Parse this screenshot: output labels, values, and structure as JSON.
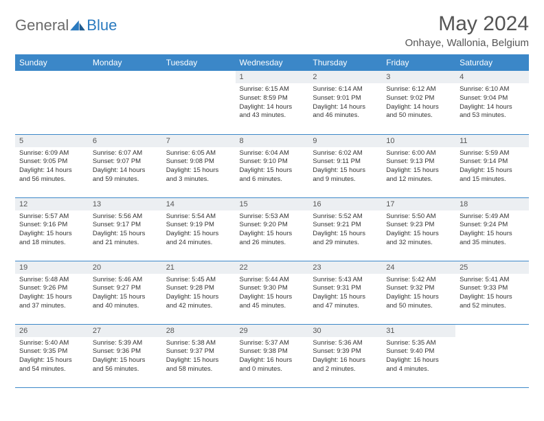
{
  "logo": {
    "word1": "General",
    "word2": "Blue"
  },
  "title": "May 2024",
  "location": "Onhaye, Wallonia, Belgium",
  "colors": {
    "header_bg": "#3b87c8",
    "header_text": "#ffffff",
    "daynum_bg": "#eceff2",
    "border": "#3b87c8",
    "logo_gray": "#6a6a6a",
    "logo_blue": "#2a7abf"
  },
  "weekdays": [
    "Sunday",
    "Monday",
    "Tuesday",
    "Wednesday",
    "Thursday",
    "Friday",
    "Saturday"
  ],
  "weeks": [
    [
      null,
      null,
      null,
      {
        "n": "1",
        "sr": "6:15 AM",
        "ss": "8:59 PM",
        "dl": "14 hours and 43 minutes."
      },
      {
        "n": "2",
        "sr": "6:14 AM",
        "ss": "9:01 PM",
        "dl": "14 hours and 46 minutes."
      },
      {
        "n": "3",
        "sr": "6:12 AM",
        "ss": "9:02 PM",
        "dl": "14 hours and 50 minutes."
      },
      {
        "n": "4",
        "sr": "6:10 AM",
        "ss": "9:04 PM",
        "dl": "14 hours and 53 minutes."
      }
    ],
    [
      {
        "n": "5",
        "sr": "6:09 AM",
        "ss": "9:05 PM",
        "dl": "14 hours and 56 minutes."
      },
      {
        "n": "6",
        "sr": "6:07 AM",
        "ss": "9:07 PM",
        "dl": "14 hours and 59 minutes."
      },
      {
        "n": "7",
        "sr": "6:05 AM",
        "ss": "9:08 PM",
        "dl": "15 hours and 3 minutes."
      },
      {
        "n": "8",
        "sr": "6:04 AM",
        "ss": "9:10 PM",
        "dl": "15 hours and 6 minutes."
      },
      {
        "n": "9",
        "sr": "6:02 AM",
        "ss": "9:11 PM",
        "dl": "15 hours and 9 minutes."
      },
      {
        "n": "10",
        "sr": "6:00 AM",
        "ss": "9:13 PM",
        "dl": "15 hours and 12 minutes."
      },
      {
        "n": "11",
        "sr": "5:59 AM",
        "ss": "9:14 PM",
        "dl": "15 hours and 15 minutes."
      }
    ],
    [
      {
        "n": "12",
        "sr": "5:57 AM",
        "ss": "9:16 PM",
        "dl": "15 hours and 18 minutes."
      },
      {
        "n": "13",
        "sr": "5:56 AM",
        "ss": "9:17 PM",
        "dl": "15 hours and 21 minutes."
      },
      {
        "n": "14",
        "sr": "5:54 AM",
        "ss": "9:19 PM",
        "dl": "15 hours and 24 minutes."
      },
      {
        "n": "15",
        "sr": "5:53 AM",
        "ss": "9:20 PM",
        "dl": "15 hours and 26 minutes."
      },
      {
        "n": "16",
        "sr": "5:52 AM",
        "ss": "9:21 PM",
        "dl": "15 hours and 29 minutes."
      },
      {
        "n": "17",
        "sr": "5:50 AM",
        "ss": "9:23 PM",
        "dl": "15 hours and 32 minutes."
      },
      {
        "n": "18",
        "sr": "5:49 AM",
        "ss": "9:24 PM",
        "dl": "15 hours and 35 minutes."
      }
    ],
    [
      {
        "n": "19",
        "sr": "5:48 AM",
        "ss": "9:26 PM",
        "dl": "15 hours and 37 minutes."
      },
      {
        "n": "20",
        "sr": "5:46 AM",
        "ss": "9:27 PM",
        "dl": "15 hours and 40 minutes."
      },
      {
        "n": "21",
        "sr": "5:45 AM",
        "ss": "9:28 PM",
        "dl": "15 hours and 42 minutes."
      },
      {
        "n": "22",
        "sr": "5:44 AM",
        "ss": "9:30 PM",
        "dl": "15 hours and 45 minutes."
      },
      {
        "n": "23",
        "sr": "5:43 AM",
        "ss": "9:31 PM",
        "dl": "15 hours and 47 minutes."
      },
      {
        "n": "24",
        "sr": "5:42 AM",
        "ss": "9:32 PM",
        "dl": "15 hours and 50 minutes."
      },
      {
        "n": "25",
        "sr": "5:41 AM",
        "ss": "9:33 PM",
        "dl": "15 hours and 52 minutes."
      }
    ],
    [
      {
        "n": "26",
        "sr": "5:40 AM",
        "ss": "9:35 PM",
        "dl": "15 hours and 54 minutes."
      },
      {
        "n": "27",
        "sr": "5:39 AM",
        "ss": "9:36 PM",
        "dl": "15 hours and 56 minutes."
      },
      {
        "n": "28",
        "sr": "5:38 AM",
        "ss": "9:37 PM",
        "dl": "15 hours and 58 minutes."
      },
      {
        "n": "29",
        "sr": "5:37 AM",
        "ss": "9:38 PM",
        "dl": "16 hours and 0 minutes."
      },
      {
        "n": "30",
        "sr": "5:36 AM",
        "ss": "9:39 PM",
        "dl": "16 hours and 2 minutes."
      },
      {
        "n": "31",
        "sr": "5:35 AM",
        "ss": "9:40 PM",
        "dl": "16 hours and 4 minutes."
      },
      null
    ]
  ],
  "labels": {
    "sunrise": "Sunrise:",
    "sunset": "Sunset:",
    "daylight": "Daylight:"
  }
}
